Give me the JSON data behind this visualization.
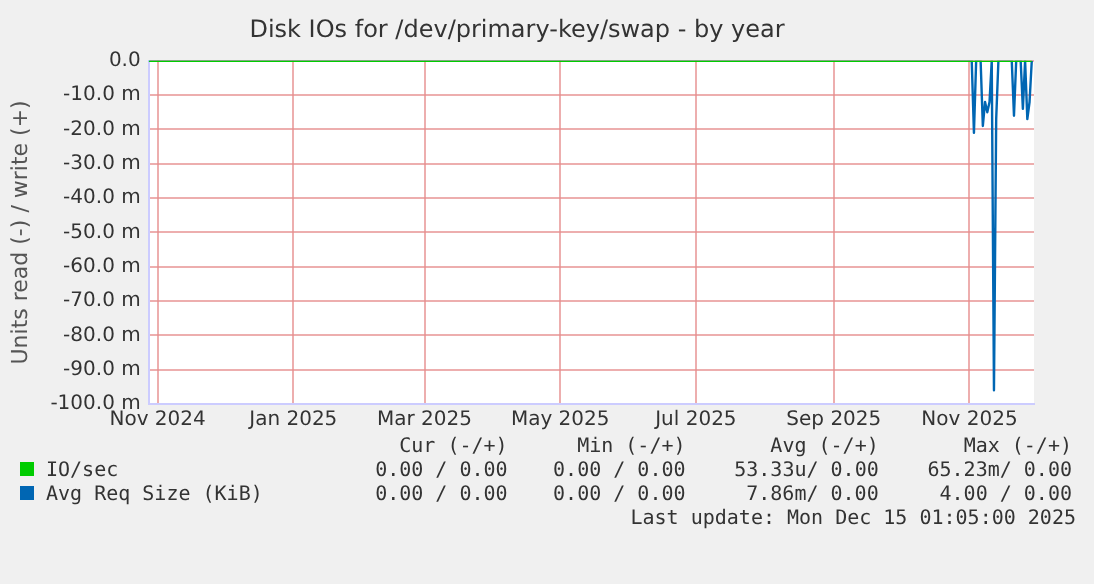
{
  "chart_data": {
    "type": "line",
    "title": "Disk IOs for /dev/primary-key/swap - by year",
    "ylabel": "Units read (-) / write (+)",
    "xlim": [
      "2024-11-12",
      "2025-12-15"
    ],
    "xticks": [
      {
        "value": "2024-11-16",
        "label": "Nov 2024"
      },
      {
        "value": "2025-01-16",
        "label": "Jan 2025"
      },
      {
        "value": "2025-03-16",
        "label": "Mar 2025"
      },
      {
        "value": "2025-05-16",
        "label": "May 2025"
      },
      {
        "value": "2025-07-16",
        "label": "Jul 2025"
      },
      {
        "value": "2025-09-16",
        "label": "Sep 2025"
      },
      {
        "value": "2025-11-16",
        "label": "Nov 2025"
      }
    ],
    "ylim": [
      -100,
      0
    ],
    "yticks": [
      {
        "value": 0,
        "label": "0.0"
      },
      {
        "value": -10,
        "label": "-10.0 m"
      },
      {
        "value": -20,
        "label": "-20.0 m"
      },
      {
        "value": -30,
        "label": "-30.0 m"
      },
      {
        "value": -40,
        "label": "-40.0 m"
      },
      {
        "value": -50,
        "label": "-50.0 m"
      },
      {
        "value": -60,
        "label": "-60.0 m"
      },
      {
        "value": -70,
        "label": "-70.0 m"
      },
      {
        "value": -80,
        "label": "-80.0 m"
      },
      {
        "value": -90,
        "label": "-90.0 m"
      },
      {
        "value": -100,
        "label": "-100.0 m"
      }
    ],
    "grid": true,
    "legend": "bottom",
    "marker": "none",
    "line_style": "solid",
    "series": [
      {
        "name": "IO/sec",
        "color": "#00cc00",
        "x": [
          "2024-11-12",
          "2025-12-14"
        ],
        "values": [
          0,
          0
        ]
      },
      {
        "name": "Avg Req Size (KiB)",
        "color": "#0066b3",
        "x": [
          "2024-11-12",
          "2025-11-17",
          "2025-11-18",
          "2025-11-19",
          "2025-11-21",
          "2025-11-22",
          "2025-11-23",
          "2025-11-24",
          "2025-11-25",
          "2025-11-26",
          "2025-11-27",
          "2025-11-28",
          "2025-11-29",
          "2025-12-05",
          "2025-12-06",
          "2025-12-07",
          "2025-12-09",
          "2025-12-10",
          "2025-12-11",
          "2025-12-12",
          "2025-12-13",
          "2025-12-14"
        ],
        "values": [
          0,
          0,
          -21,
          0,
          0,
          -19,
          -12,
          -15,
          -12,
          0,
          -96,
          -17,
          0,
          0,
          -16,
          0,
          0,
          -14,
          0,
          -17,
          -12,
          0
        ]
      }
    ],
    "annotations": [
      "Cur (-/+)",
      "Min (-/+)",
      "Avg (-/+)",
      "Max (-/+)",
      "0.00 / 0.00",
      "0.00 / 0.00",
      "53.33u/ 0.00",
      "65.23m/ 0.00",
      "0.00 / 0.00",
      "0.00 / 0.00",
      "7.86m/ 0.00",
      "4.00 / 0.00",
      "Last update: Mon Dec 15 01:05:00 2025"
    ]
  }
}
